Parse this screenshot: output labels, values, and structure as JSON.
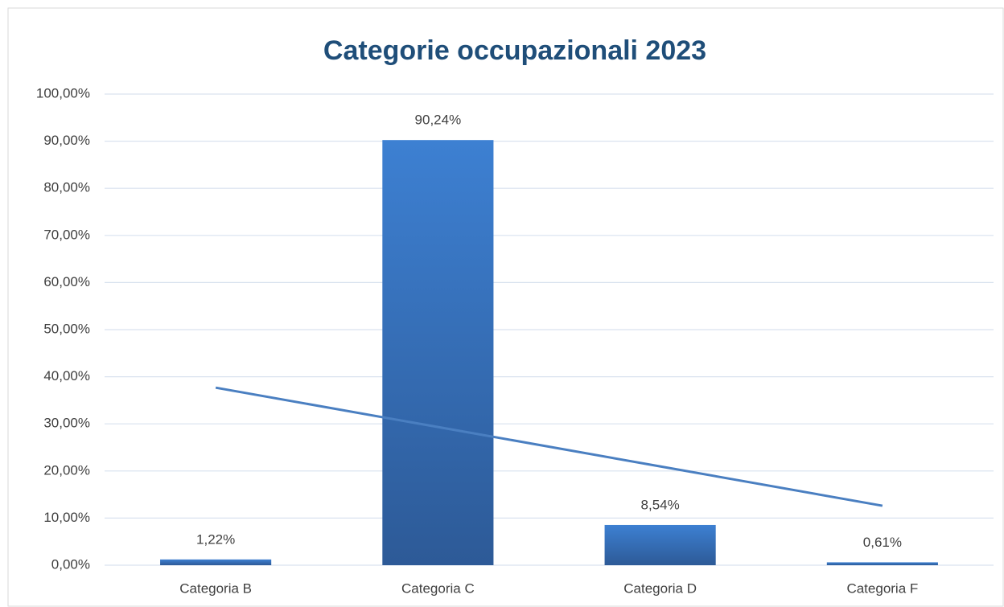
{
  "chart_data": {
    "type": "bar",
    "title": "Categorie occupazionali 2023",
    "categories": [
      "Categoria B",
      "Categoria C",
      "Categoria D",
      "Categoria F"
    ],
    "values": [
      1.22,
      90.24,
      8.54,
      0.61
    ],
    "value_labels": [
      "1,22%",
      "90,24%",
      "8,54%",
      "0,61%"
    ],
    "color": "#3a78c8",
    "trendline": {
      "values": [
        37.68,
        29.33,
        20.97,
        12.62
      ],
      "color": "#4a7fc1"
    },
    "ylim": [
      0,
      100
    ],
    "yticks": [
      {
        "value": 0,
        "label": "0,00%"
      },
      {
        "value": 10,
        "label": "10,00%"
      },
      {
        "value": 20,
        "label": "20,00%"
      },
      {
        "value": 30,
        "label": "30,00%"
      },
      {
        "value": 40,
        "label": "40,00%"
      },
      {
        "value": 50,
        "label": "50,00%"
      },
      {
        "value": 60,
        "label": "60,00%"
      },
      {
        "value": 70,
        "label": "70,00%"
      },
      {
        "value": 80,
        "label": "80,00%"
      },
      {
        "value": 90,
        "label": "90,00%"
      },
      {
        "value": 100,
        "label": "100,00%"
      }
    ],
    "grid": true
  }
}
